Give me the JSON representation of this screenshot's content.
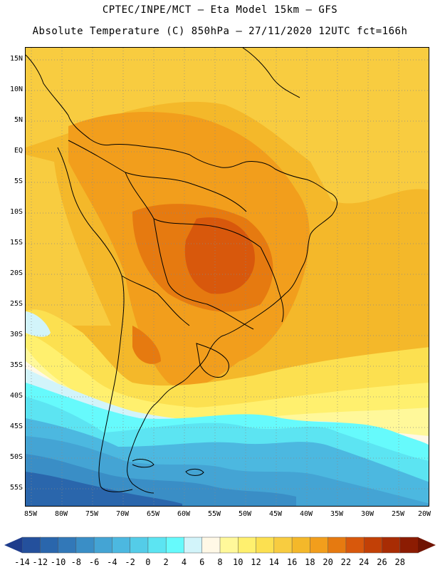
{
  "title_line1": "CPTEC/INPE/MCT —  Eta Model 15km — GFS",
  "title_line2": "Absolute Temperature (C) 850hPa — 27/11/2020 12UTC fct=166h",
  "lat_labels": [
    "15N",
    "10N",
    "5N",
    "EQ",
    "5S",
    "10S",
    "15S",
    "20S",
    "25S",
    "30S",
    "35S",
    "40S",
    "45S",
    "50S",
    "55S"
  ],
  "lon_labels": [
    "85W",
    "80W",
    "75W",
    "70W",
    "65W",
    "60W",
    "55W",
    "50W",
    "45W",
    "40W",
    "35W",
    "30W",
    "25W",
    "20W"
  ],
  "colorbar": {
    "labels": [
      "-14",
      "-12",
      "-10",
      "-8",
      "-6",
      "-4",
      "-2",
      "0",
      "2",
      "4",
      "6",
      "8",
      "10",
      "12",
      "14",
      "16",
      "18",
      "20",
      "22",
      "24",
      "26",
      "28"
    ],
    "colors": [
      "#1e3c8c",
      "#24509c",
      "#2a66ac",
      "#3278b8",
      "#3a8ec6",
      "#44a4d4",
      "#4cb8e0",
      "#54cce8",
      "#5ce4f2",
      "#66fafc",
      "#d2f4fa",
      "#fff8e6",
      "#fff89a",
      "#fff06e",
      "#fce050",
      "#f8cc40",
      "#f4b82a",
      "#f29e1c",
      "#e67a10",
      "#d8580c",
      "#c24006",
      "#a82c04",
      "#8c1c02",
      "#701402"
    ]
  }
}
